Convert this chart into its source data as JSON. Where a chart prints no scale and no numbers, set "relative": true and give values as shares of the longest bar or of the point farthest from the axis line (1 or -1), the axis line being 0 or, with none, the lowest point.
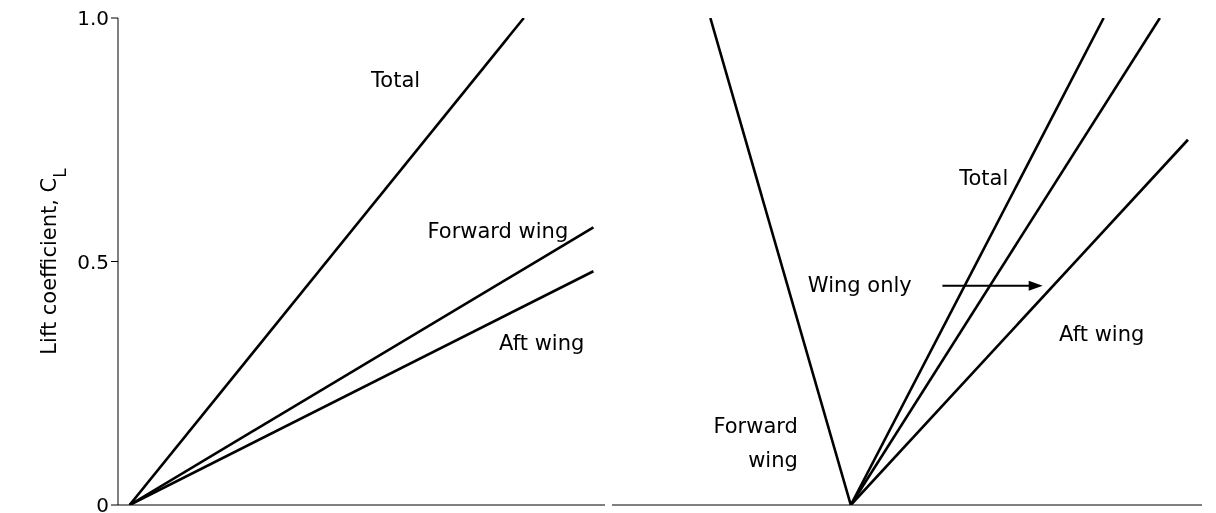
{
  "chart_data": [
    {
      "type": "line",
      "ylabel": "Lift coefficient, C$_{L}$",
      "categories": [
        null,
        null,
        null,
        null,
        null,
        null,
        null,
        null,
        null,
        null,
        null,
        null,
        null,
        null,
        null,
        null,
        null,
        null,
        null,
        null,
        null
      ],
      "ylim": [
        0,
        1
      ],
      "yticks": [
        0,
        0.5,
        {
          "value": 1,
          "label": "1.0"
        }
      ],
      "tick_labels": "y",
      "marker": "none",
      "line_style": "solid",
      "series": [
        {
          "name": "Total",
          "color": "#000000",
          "values": [
            0,
            null,
            null,
            null,
            null,
            null,
            null,
            null,
            null,
            null,
            null,
            null,
            null,
            null,
            null,
            null,
            null,
            1,
            null,
            null,
            null
          ]
        },
        {
          "name": "Forward wing",
          "color": "#000000",
          "values": [
            0,
            null,
            null,
            null,
            null,
            null,
            null,
            null,
            null,
            null,
            null,
            null,
            null,
            null,
            null,
            null,
            null,
            null,
            null,
            null,
            0.57
          ]
        },
        {
          "name": "Aft wing",
          "color": "#000000",
          "values": [
            0,
            null,
            null,
            null,
            null,
            null,
            null,
            null,
            null,
            null,
            null,
            null,
            null,
            null,
            null,
            null,
            null,
            null,
            null,
            null,
            0.48
          ]
        }
      ]
    },
    {
      "type": "line",
      "relative": true,
      "categories": [
        null,
        null,
        null,
        null,
        null,
        null,
        null,
        null,
        null,
        null,
        null,
        null,
        null,
        null,
        null,
        null,
        null,
        null,
        null,
        null,
        null
      ],
      "marker": "none",
      "line_style": "solid",
      "series": [
        {
          "name": "Total",
          "color": "#000000",
          "values": [
            null,
            null,
            null,
            null,
            null,
            null,
            null,
            null,
            0,
            null,
            null,
            null,
            null,
            null,
            null,
            null,
            null,
            1,
            null,
            null,
            null
          ]
        },
        {
          "name": "Wing only",
          "color": "#000000",
          "values": [
            null,
            null,
            null,
            null,
            null,
            null,
            null,
            null,
            0,
            null,
            null,
            null,
            null,
            null,
            null,
            null,
            null,
            null,
            null,
            1,
            null
          ]
        },
        {
          "name": "Aft wing",
          "color": "#000000",
          "values": [
            null,
            null,
            null,
            null,
            null,
            null,
            null,
            null,
            0,
            null,
            null,
            null,
            null,
            null,
            null,
            null,
            null,
            null,
            null,
            null,
            0.75
          ]
        },
        {
          "name": "Forward wing",
          "color": "#000000",
          "values": [
            null,
            null,
            null,
            1,
            null,
            null,
            null,
            null,
            0,
            null,
            null,
            null,
            null,
            null,
            null,
            null,
            null,
            null,
            null,
            null,
            null
          ]
        }
      ]
    }
  ]
}
